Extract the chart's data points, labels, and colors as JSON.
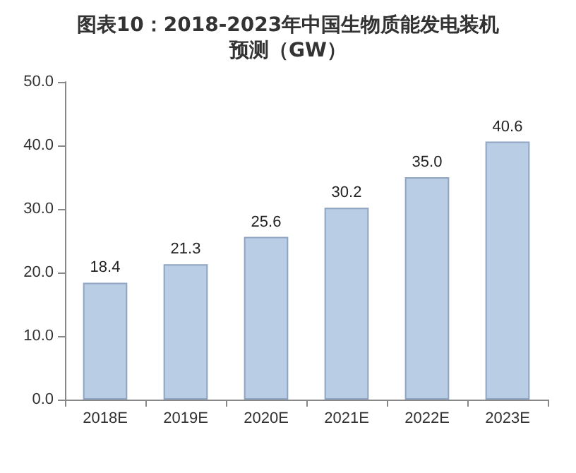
{
  "chart_data": {
    "type": "bar",
    "title": "图表10：2018-2023年中国生物质能发电装机预测（GW）",
    "categories": [
      "2018E",
      "2019E",
      "2020E",
      "2021E",
      "2022E",
      "2023E"
    ],
    "values": [
      18.4,
      21.3,
      25.6,
      30.2,
      35.0,
      40.6
    ],
    "value_labels": [
      "18.4",
      "21.3",
      "25.6",
      "30.2",
      "35.0",
      "40.6"
    ],
    "color": "#b9cde5",
    "ylim": [
      0,
      50
    ],
    "yticks": [
      {
        "value": 0,
        "label": "0.0"
      },
      {
        "value": 10,
        "label": "10.0"
      },
      {
        "value": 20,
        "label": "20.0"
      },
      {
        "value": 30,
        "label": "30.0"
      },
      {
        "value": 40,
        "label": "40.0"
      },
      {
        "value": 50,
        "label": "50.0"
      }
    ],
    "grid": false
  }
}
